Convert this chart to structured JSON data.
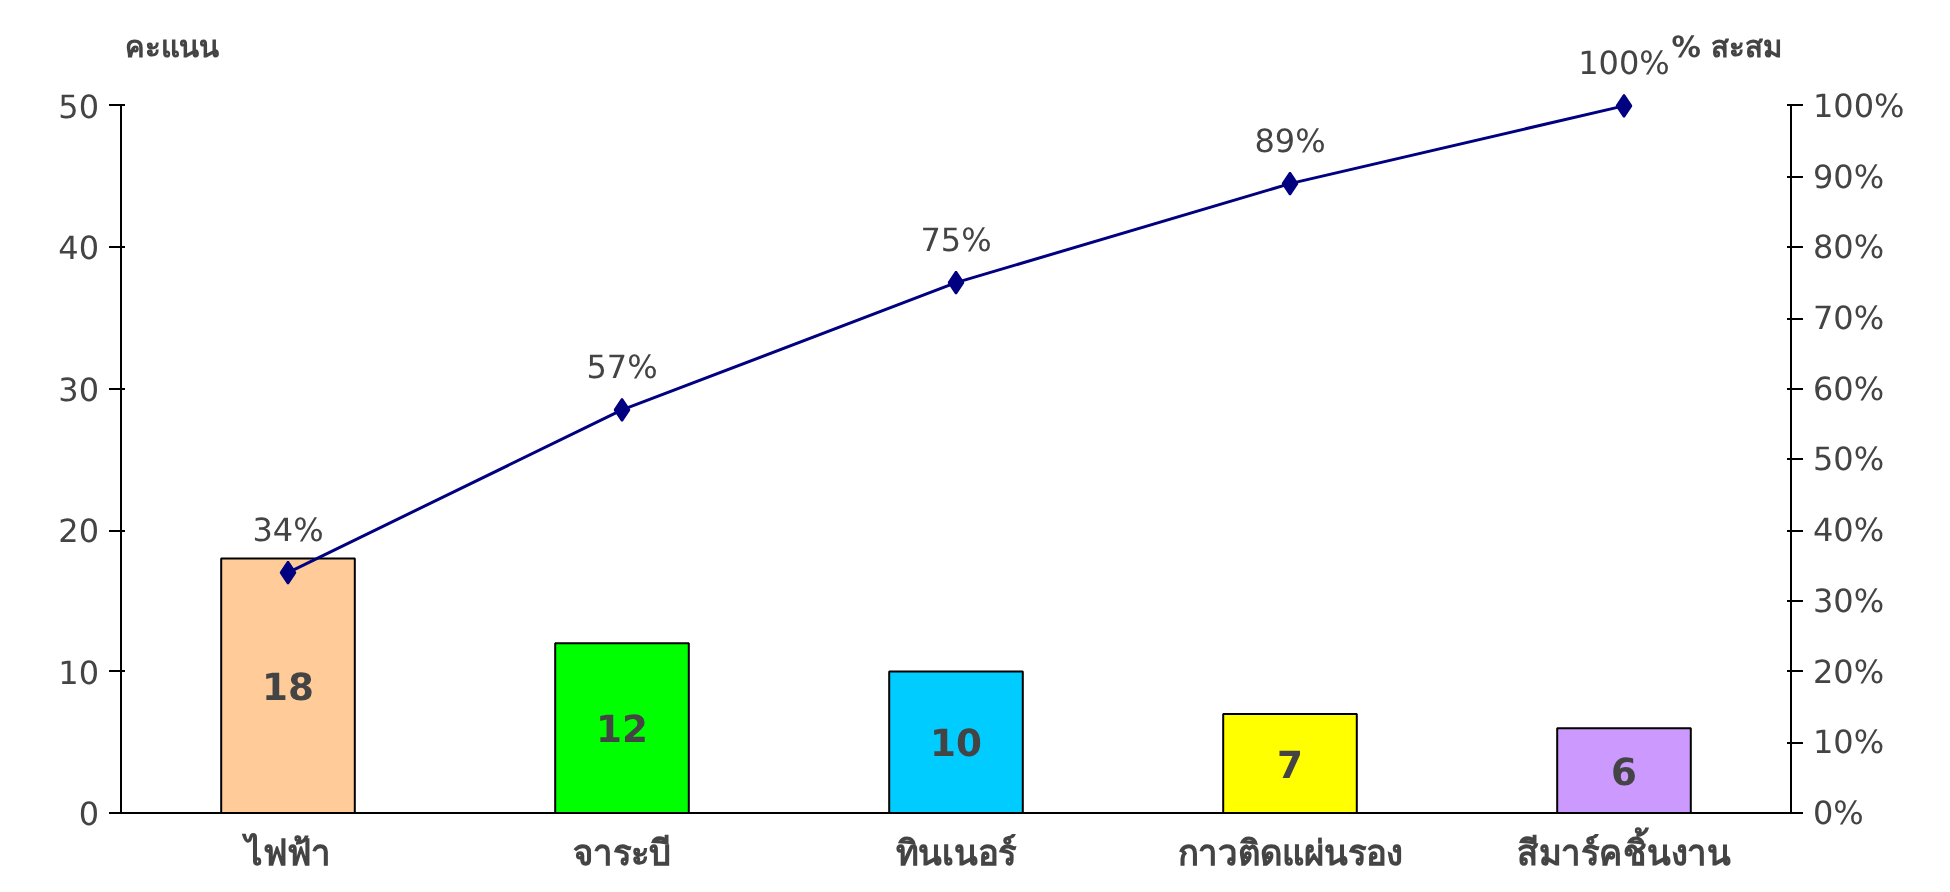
{
  "chart_data": {
    "type": "bar",
    "ylabel": "คะแนน",
    "y2label": "% สะสม",
    "categories": [
      "ไฟฟ้า",
      "จาระบี",
      "ทินเนอร์",
      "กาวติดแผ่นรอง",
      "สีมาร์คชิ้นงาน"
    ],
    "series": [
      {
        "colors": [
          "#ffcc99",
          "#00ff00",
          "#00ccff",
          "#ffff00",
          "#cc99ff"
        ],
        "values": [
          18,
          12,
          10,
          7,
          6
        ],
        "value_labels": [
          "18",
          "12",
          "10",
          "7",
          "6"
        ]
      },
      {
        "type": "line",
        "axis": "y2",
        "color": "#000080",
        "values": [
          34,
          57,
          75,
          89,
          100
        ],
        "value_labels": [
          "34%",
          "57%",
          "75%",
          "89%",
          "100%"
        ],
        "marker": "diamond"
      }
    ],
    "ylim": [
      0,
      50
    ],
    "yticks": [
      0,
      10,
      20,
      30,
      40,
      50
    ],
    "y2lim": [
      0,
      100
    ],
    "y2ticks": [
      {
        "value": 0,
        "label": "0%"
      },
      {
        "value": 10,
        "label": "10%"
      },
      {
        "value": 20,
        "label": "20%"
      },
      {
        "value": 30,
        "label": "30%"
      },
      {
        "value": 40,
        "label": "40%"
      },
      {
        "value": 50,
        "label": "50%"
      },
      {
        "value": 60,
        "label": "60%"
      },
      {
        "value": 70,
        "label": "70%"
      },
      {
        "value": 80,
        "label": "80%"
      },
      {
        "value": 90,
        "label": "90%"
      },
      {
        "value": 100,
        "label": "100%"
      }
    ],
    "grid": false
  }
}
